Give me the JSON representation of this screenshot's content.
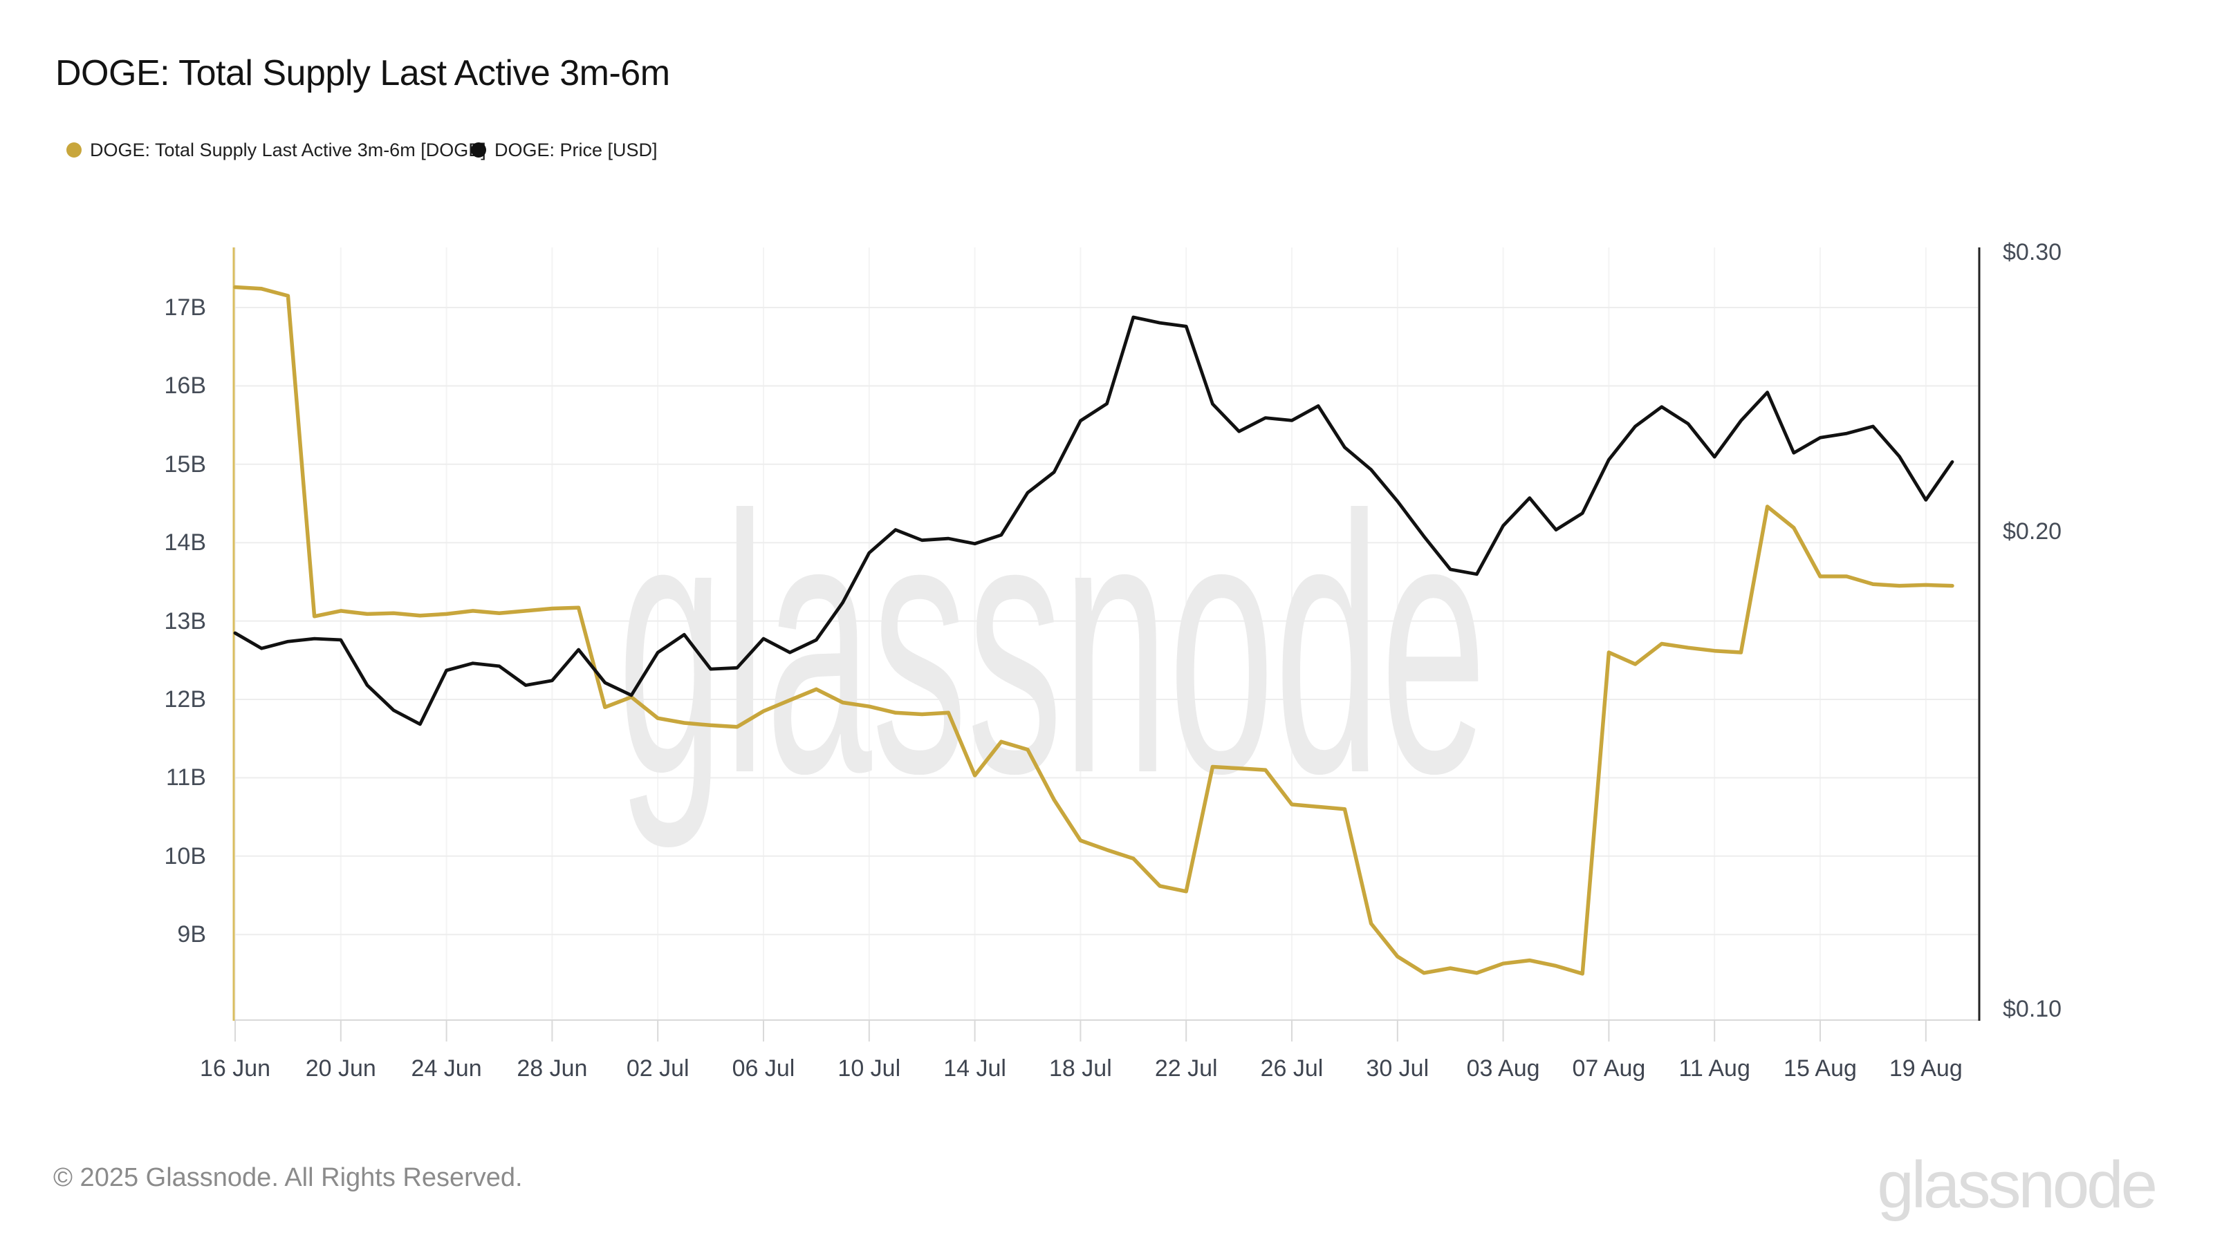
{
  "header": {
    "title": "DOGE: Total Supply Last Active 3m-6m"
  },
  "legend": {
    "items": [
      {
        "label": "DOGE: Total Supply Last Active 3m-6m [DOGE]",
        "color": "#C8A63C"
      },
      {
        "label": "DOGE: Price [USD]",
        "color": "#111111"
      }
    ]
  },
  "watermark": {
    "text": "glassnode",
    "color": "#ebebeb"
  },
  "footer": {
    "copyright": "© 2025 Glassnode. All Rights Reserved.",
    "brand": "glassnode"
  },
  "axes": {
    "left": {
      "tick_labels": [
        "17B",
        "16B",
        "15B",
        "14B",
        "13B",
        "12B",
        "11B",
        "10B",
        "9B"
      ],
      "tick_values": [
        17,
        16,
        15,
        14,
        13,
        12,
        11,
        10,
        9
      ],
      "unit": "B",
      "scale": "linear"
    },
    "right": {
      "tick_labels": [
        "$0.30",
        "$0.20",
        "$0.10"
      ],
      "tick_values": [
        0.3,
        0.2,
        0.1
      ],
      "scale": "log"
    },
    "x": {
      "tick_labels": [
        "16 Jun",
        "20 Jun",
        "24 Jun",
        "28 Jun",
        "02 Jul",
        "06 Jul",
        "10 Jul",
        "14 Jul",
        "18 Jul",
        "22 Jul",
        "26 Jul",
        "30 Jul",
        "03 Aug",
        "07 Aug",
        "11 Aug",
        "15 Aug",
        "19 Aug"
      ],
      "tick_day_indexes": [
        0,
        4,
        8,
        12,
        16,
        20,
        24,
        28,
        32,
        36,
        40,
        44,
        48,
        52,
        56,
        60,
        64
      ]
    }
  },
  "chart_data": {
    "type": "line",
    "title": "DOGE: Total Supply Last Active 3m-6m",
    "grid": true,
    "legend_position": "top-left",
    "left_ylim": [
      7.9,
      17.8
    ],
    "right_ylim": [
      0.098,
      0.302
    ],
    "right_scale": "log",
    "x_dates": [
      "16 Jun",
      "17 Jun",
      "18 Jun",
      "19 Jun",
      "20 Jun",
      "21 Jun",
      "22 Jun",
      "23 Jun",
      "24 Jun",
      "25 Jun",
      "26 Jun",
      "27 Jun",
      "28 Jun",
      "29 Jun",
      "30 Jun",
      "01 Jul",
      "02 Jul",
      "03 Jul",
      "04 Jul",
      "05 Jul",
      "06 Jul",
      "07 Jul",
      "08 Jul",
      "09 Jul",
      "10 Jul",
      "11 Jul",
      "12 Jul",
      "13 Jul",
      "14 Jul",
      "15 Jul",
      "16 Jul",
      "17 Jul",
      "18 Jul",
      "19 Jul",
      "20 Jul",
      "21 Jul",
      "22 Jul",
      "23 Jul",
      "24 Jul",
      "25 Jul",
      "26 Jul",
      "27 Jul",
      "28 Jul",
      "29 Jul",
      "30 Jul",
      "31 Jul",
      "01 Aug",
      "02 Aug",
      "03 Aug",
      "04 Aug",
      "05 Aug",
      "06 Aug",
      "07 Aug",
      "08 Aug",
      "09 Aug",
      "10 Aug",
      "11 Aug",
      "12 Aug",
      "13 Aug",
      "14 Aug",
      "15 Aug",
      "16 Aug",
      "17 Aug",
      "18 Aug",
      "19 Aug",
      "20 Aug"
    ],
    "series": [
      {
        "name": "DOGE: Total Supply Last Active 3m-6m [DOGE]",
        "axis": "left",
        "unit": "B",
        "color": "#C8A63C",
        "values": [
          17.26,
          17.24,
          17.15,
          13.06,
          13.13,
          13.09,
          13.1,
          13.07,
          13.09,
          13.13,
          13.1,
          13.13,
          13.16,
          13.17,
          11.9,
          12.03,
          11.76,
          11.7,
          11.67,
          11.65,
          11.85,
          11.99,
          12.13,
          11.96,
          11.91,
          11.83,
          11.81,
          11.83,
          11.03,
          11.46,
          11.36,
          10.72,
          10.2,
          10.08,
          9.97,
          9.62,
          9.55,
          11.14,
          11.12,
          11.1,
          10.66,
          10.63,
          10.6,
          9.14,
          8.72,
          8.51,
          8.57,
          8.51,
          8.63,
          8.67,
          8.6,
          8.5,
          12.6,
          12.45,
          12.71,
          12.66,
          12.62,
          12.6,
          14.46,
          14.19,
          13.57,
          13.57,
          13.47,
          13.45,
          13.46,
          13.45
        ]
      },
      {
        "name": "DOGE: Price [USD]",
        "axis": "right",
        "unit": "USD",
        "color": "#111111",
        "values": [
          0.1726,
          0.1688,
          0.1705,
          0.1712,
          0.1709,
          0.16,
          0.1543,
          0.1512,
          0.1635,
          0.1652,
          0.1645,
          0.16,
          0.1611,
          0.1685,
          0.1606,
          0.1577,
          0.1678,
          0.1722,
          0.1638,
          0.1641,
          0.1712,
          0.1678,
          0.1709,
          0.1804,
          0.1939,
          0.2005,
          0.1975,
          0.198,
          0.1965,
          0.199,
          0.2116,
          0.218,
          0.2349,
          0.2408,
          0.273,
          0.2708,
          0.2694,
          0.2407,
          0.2313,
          0.2359,
          0.235,
          0.24,
          0.226,
          0.2188,
          0.209,
          0.1986,
          0.1893,
          0.188,
          0.2017,
          0.21,
          0.2005,
          0.2054,
          0.222,
          0.233,
          0.2397,
          0.2339,
          0.2229,
          0.2349,
          0.2448,
          0.2242,
          0.2292,
          0.2306,
          0.233,
          0.223,
          0.2094,
          0.2213
        ]
      }
    ],
    "style": {
      "grid_color": "#ededed",
      "vgrid_color": "#f4f4f4",
      "left_axis_color": "#D9BD5F",
      "right_axis_color": "#222222",
      "axis_baseline_color": "#d9d9d9"
    }
  }
}
